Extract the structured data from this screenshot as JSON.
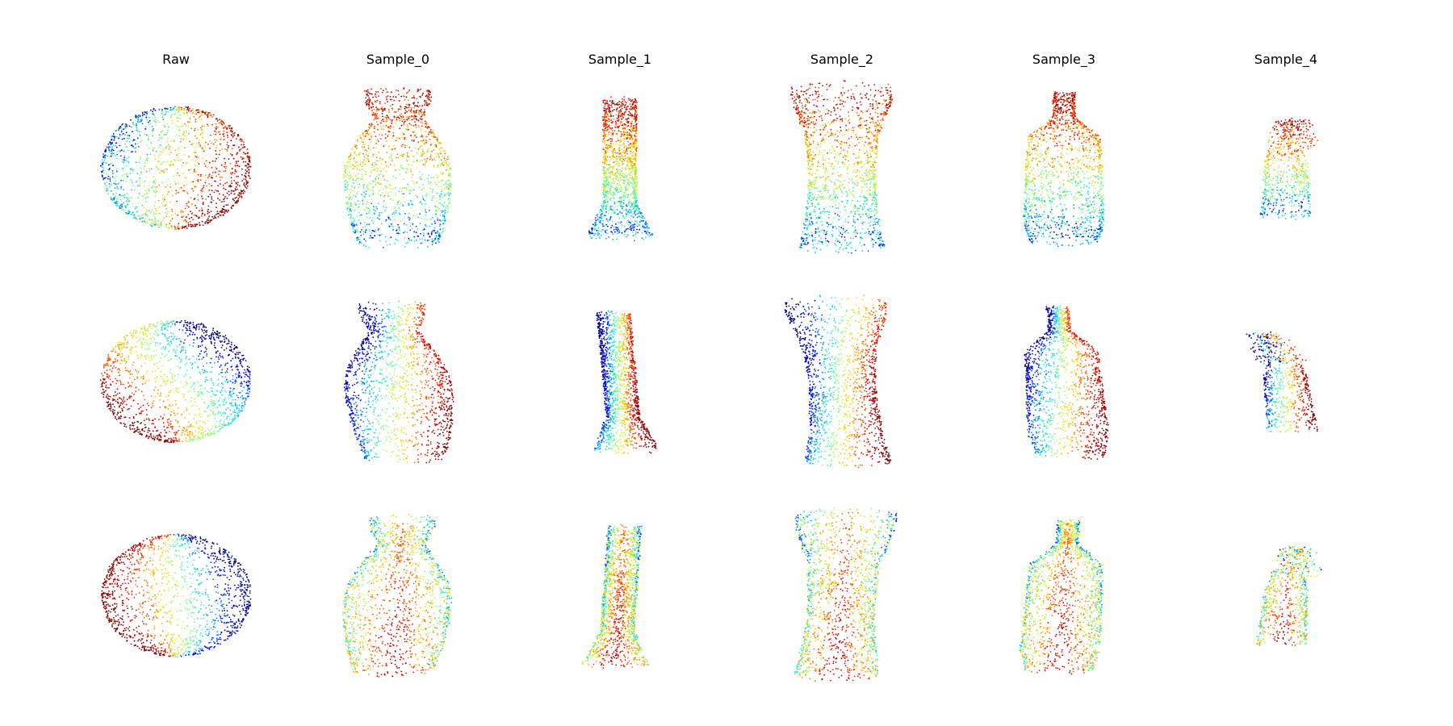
{
  "figure": {
    "columns": [
      {
        "title": "Raw",
        "shape": "ellipsoid"
      },
      {
        "title": "Sample_0",
        "shape": "vase"
      },
      {
        "title": "Sample_1",
        "shape": "tube"
      },
      {
        "title": "Sample_2",
        "shape": "cup"
      },
      {
        "title": "Sample_3",
        "shape": "bottle"
      },
      {
        "title": "Sample_4",
        "shape": "small-jar"
      }
    ],
    "rows": 3,
    "colormap": [
      "#00008f",
      "#0000ff",
      "#00bfff",
      "#40ffbf",
      "#c0ff40",
      "#ffd000",
      "#ff6000",
      "#df0000",
      "#800000"
    ],
    "background": "#ffffff"
  }
}
